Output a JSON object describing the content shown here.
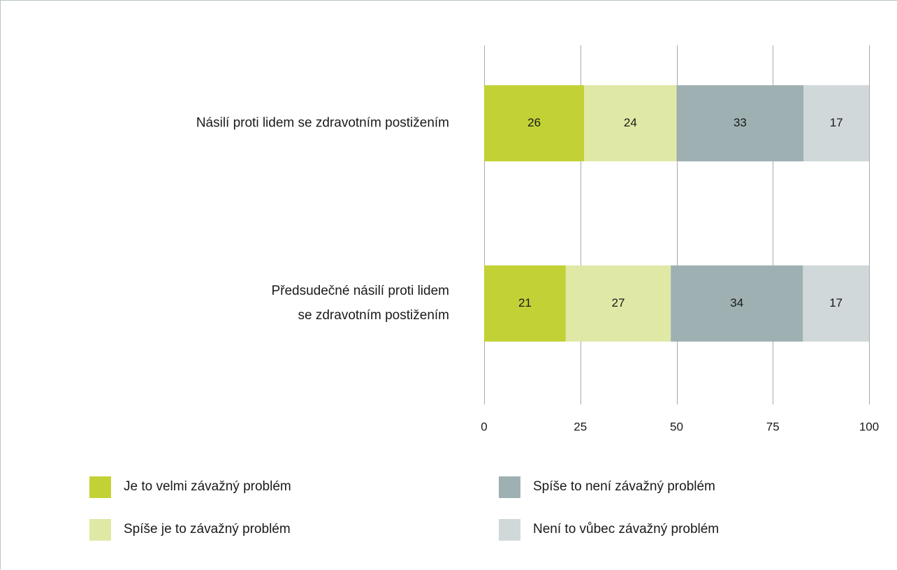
{
  "chart_data": {
    "type": "bar",
    "orientation": "horizontal",
    "stacked": true,
    "categories": [
      [
        "Násilí proti lidem se zdravotním postižením"
      ],
      [
        "Předsudečné násilí proti lidem",
        "se zdravotním postižením"
      ]
    ],
    "series": [
      {
        "name": "Je to velmi závažný problém",
        "color": "#c2d136",
        "values": [
          26,
          21
        ]
      },
      {
        "name": "Spíše je to závažný problém",
        "color": "#e0e8a6",
        "values": [
          24,
          27
        ]
      },
      {
        "name": "Spíše to není závažný problém",
        "color": "#9eb0b2",
        "values": [
          33,
          34
        ]
      },
      {
        "name": "Není to vůbec závažný problém",
        "color": "#d0d8d9",
        "values": [
          17,
          17
        ]
      }
    ],
    "xlim": [
      0,
      100
    ],
    "xticks": [
      0,
      25,
      50,
      75,
      100
    ],
    "xtick_labels": [
      "0",
      "25",
      "50",
      "75",
      "100"
    ],
    "grid": true,
    "gridline_color": "#a8a8a8",
    "data_labels": true,
    "legend_position": "bottom",
    "title": "",
    "xlabel": "",
    "ylabel": ""
  }
}
